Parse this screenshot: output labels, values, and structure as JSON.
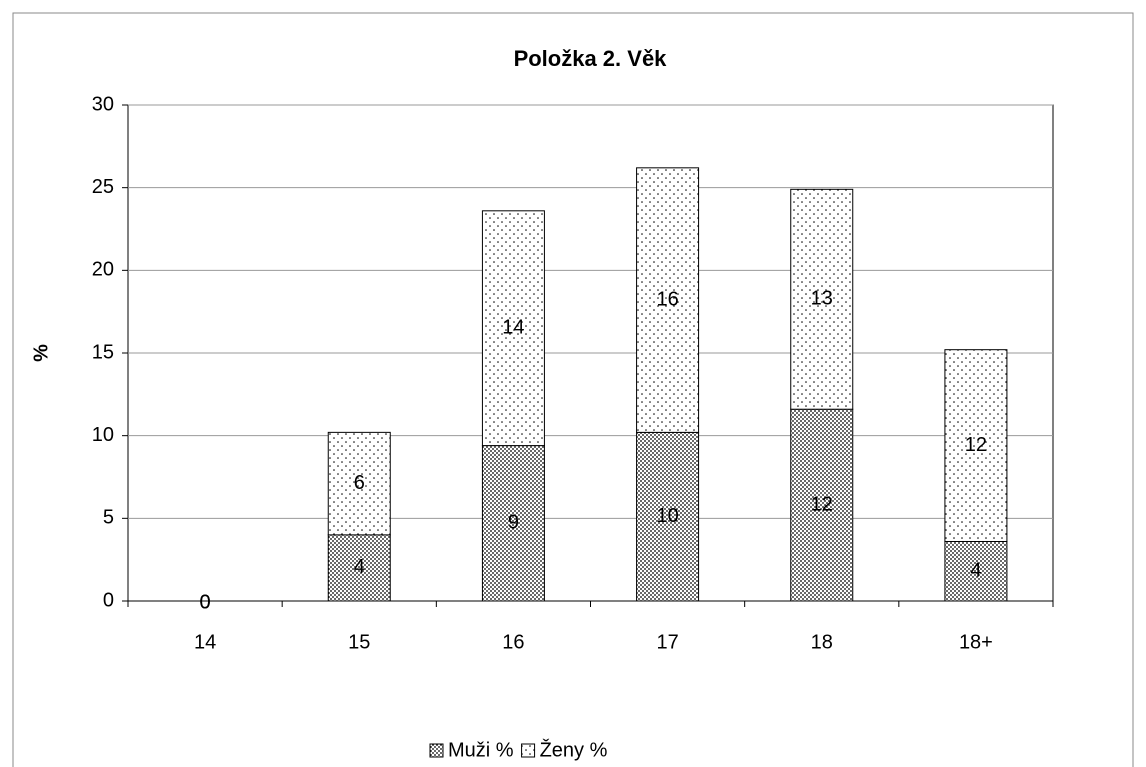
{
  "chart_data": {
    "type": "stacked_bar",
    "title": "Položka 2. Věk",
    "y_label": "%",
    "categories": [
      "14",
      "15",
      "16",
      "17",
      "18",
      "18+"
    ],
    "series": [
      {
        "name": "Muži %",
        "color": "#000000",
        "pattern": "dense",
        "values": [
          0,
          4.0,
          9.4,
          10.2,
          11.6,
          3.6
        ],
        "value_labels": [
          "0",
          "4",
          "9",
          "10",
          "12",
          "4"
        ]
      },
      {
        "name": "Ženy %",
        "color": "#000000",
        "pattern": "sparse",
        "values": [
          0,
          6.2,
          14.2,
          16.0,
          13.3,
          11.6
        ],
        "value_labels": [
          "0",
          "6",
          "14",
          "16",
          "13",
          "12"
        ]
      }
    ],
    "ylim": [
      0,
      30
    ],
    "yticks": [
      0,
      5,
      10,
      15,
      20,
      25,
      30
    ],
    "grid": true,
    "legend": "bottom"
  }
}
